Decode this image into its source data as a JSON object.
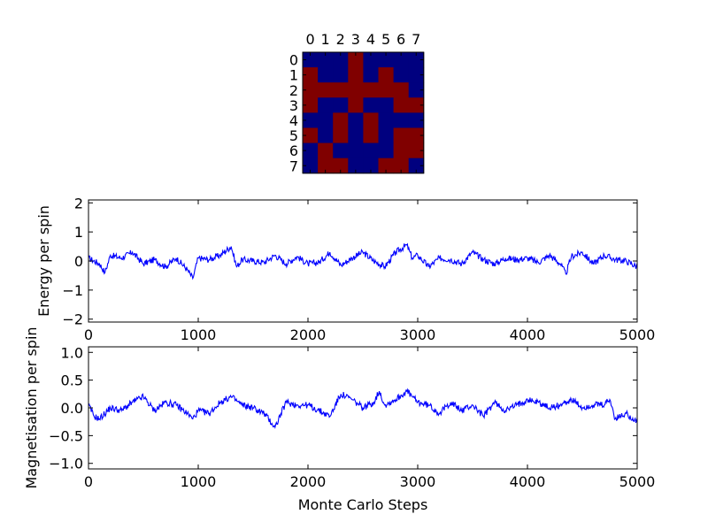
{
  "colors": {
    "line": "#0000ff",
    "spin_up": "#800000",
    "spin_down": "#00007f",
    "axes": "#000000",
    "background": "#ffffff"
  },
  "chart_data": [
    {
      "type": "heatmap",
      "x_ticks": [
        "0",
        "1",
        "2",
        "3",
        "4",
        "5",
        "6",
        "7"
      ],
      "y_ticks": [
        "0",
        "1",
        "2",
        "3",
        "4",
        "5",
        "6",
        "7"
      ],
      "legend": {
        "1": "spin up (dark red)",
        "0": "spin down (dark blue)"
      },
      "grid": [
        [
          0,
          0,
          0,
          1,
          0,
          0,
          0,
          0
        ],
        [
          1,
          0,
          0,
          1,
          0,
          1,
          0,
          0
        ],
        [
          1,
          1,
          1,
          1,
          1,
          1,
          1,
          0
        ],
        [
          1,
          0,
          0,
          1,
          0,
          0,
          1,
          1
        ],
        [
          0,
          0,
          1,
          0,
          1,
          0,
          0,
          0
        ],
        [
          1,
          0,
          1,
          0,
          1,
          0,
          1,
          1
        ],
        [
          0,
          1,
          0,
          0,
          0,
          0,
          1,
          1
        ],
        [
          0,
          1,
          1,
          0,
          0,
          1,
          1,
          0
        ]
      ]
    },
    {
      "type": "line",
      "xlabel": "",
      "ylabel": "Energy per spin",
      "xlim": [
        0,
        5000
      ],
      "ylim": [
        -2.1,
        2.1
      ],
      "x_ticks": [
        0,
        1000,
        2000,
        3000,
        4000,
        5000
      ],
      "y_ticks": [
        -2,
        -1,
        0,
        1,
        2
      ],
      "x_tick_labels": [
        "0",
        "1000",
        "2000",
        "3000",
        "4000",
        "5000"
      ],
      "y_tick_labels": [
        "−2",
        "−1",
        "0",
        "1",
        "2"
      ],
      "series": [
        {
          "x": [
            0,
            100,
            150,
            200,
            300,
            400,
            500,
            600,
            700,
            800,
            900,
            950,
            1000,
            1100,
            1200,
            1300,
            1350,
            1400,
            1500,
            1600,
            1700,
            1800,
            1900,
            2000,
            2100,
            2200,
            2300,
            2400,
            2500,
            2600,
            2700,
            2800,
            2900,
            2950,
            3000,
            3100,
            3200,
            3300,
            3400,
            3500,
            3600,
            3700,
            3800,
            3900,
            4000,
            4100,
            4200,
            4300,
            4350,
            4400,
            4500,
            4600,
            4700,
            4800,
            4900,
            5000
          ],
          "y": [
            0.1,
            -0.1,
            -0.4,
            0.2,
            0.1,
            0.3,
            -0.1,
            0.05,
            -0.2,
            0.1,
            -0.3,
            -0.6,
            0.1,
            0.05,
            0.2,
            0.5,
            -0.2,
            0.05,
            0.0,
            -0.05,
            0.2,
            -0.1,
            0.15,
            -0.1,
            -0.05,
            0.3,
            -0.15,
            0.1,
            0.3,
            0.0,
            -0.2,
            0.3,
            0.55,
            0.1,
            0.2,
            -0.2,
            0.1,
            0.05,
            -0.1,
            0.3,
            0.05,
            -0.1,
            0.1,
            0.05,
            0.1,
            -0.05,
            0.2,
            -0.1,
            -0.45,
            0.15,
            0.3,
            -0.1,
            0.2,
            0.05,
            0.0,
            -0.2
          ]
        }
      ]
    },
    {
      "type": "line",
      "xlabel": "Monte Carlo Steps",
      "ylabel": "Magnetisation per spin",
      "xlim": [
        0,
        5000
      ],
      "ylim": [
        -1.1,
        1.1
      ],
      "x_ticks": [
        0,
        1000,
        2000,
        3000,
        4000,
        5000
      ],
      "y_ticks": [
        -1.0,
        -0.5,
        0.0,
        0.5,
        1.0
      ],
      "x_tick_labels": [
        "0",
        "1000",
        "2000",
        "3000",
        "4000",
        "5000"
      ],
      "y_tick_labels": [
        "−1.0",
        "−0.5",
        "0.0",
        "0.5",
        "1.0"
      ],
      "series": [
        {
          "x": [
            0,
            50,
            100,
            200,
            300,
            400,
            500,
            600,
            700,
            800,
            900,
            950,
            1000,
            1100,
            1200,
            1300,
            1400,
            1500,
            1600,
            1700,
            1800,
            1900,
            2000,
            2100,
            2200,
            2300,
            2400,
            2500,
            2600,
            2650,
            2700,
            2800,
            2900,
            3000,
            3100,
            3200,
            3300,
            3400,
            3500,
            3600,
            3700,
            3800,
            3900,
            4000,
            4100,
            4200,
            4300,
            4400,
            4500,
            4600,
            4700,
            4750,
            4800,
            4900,
            5000
          ],
          "y": [
            0.05,
            -0.15,
            -0.2,
            0.0,
            -0.05,
            0.1,
            0.2,
            -0.05,
            0.1,
            0.05,
            -0.1,
            -0.2,
            -0.05,
            -0.1,
            0.1,
            0.2,
            0.05,
            0.0,
            -0.1,
            -0.35,
            0.1,
            0.05,
            0.05,
            -0.05,
            -0.15,
            0.25,
            0.15,
            0.0,
            0.1,
            0.3,
            0.05,
            0.15,
            0.3,
            0.1,
            0.05,
            -0.1,
            0.1,
            -0.05,
            0.05,
            -0.15,
            0.1,
            -0.05,
            0.05,
            0.15,
            0.1,
            0.0,
            0.05,
            0.15,
            0.0,
            0.05,
            0.05,
            0.15,
            -0.2,
            -0.1,
            -0.25
          ]
        }
      ]
    }
  ]
}
